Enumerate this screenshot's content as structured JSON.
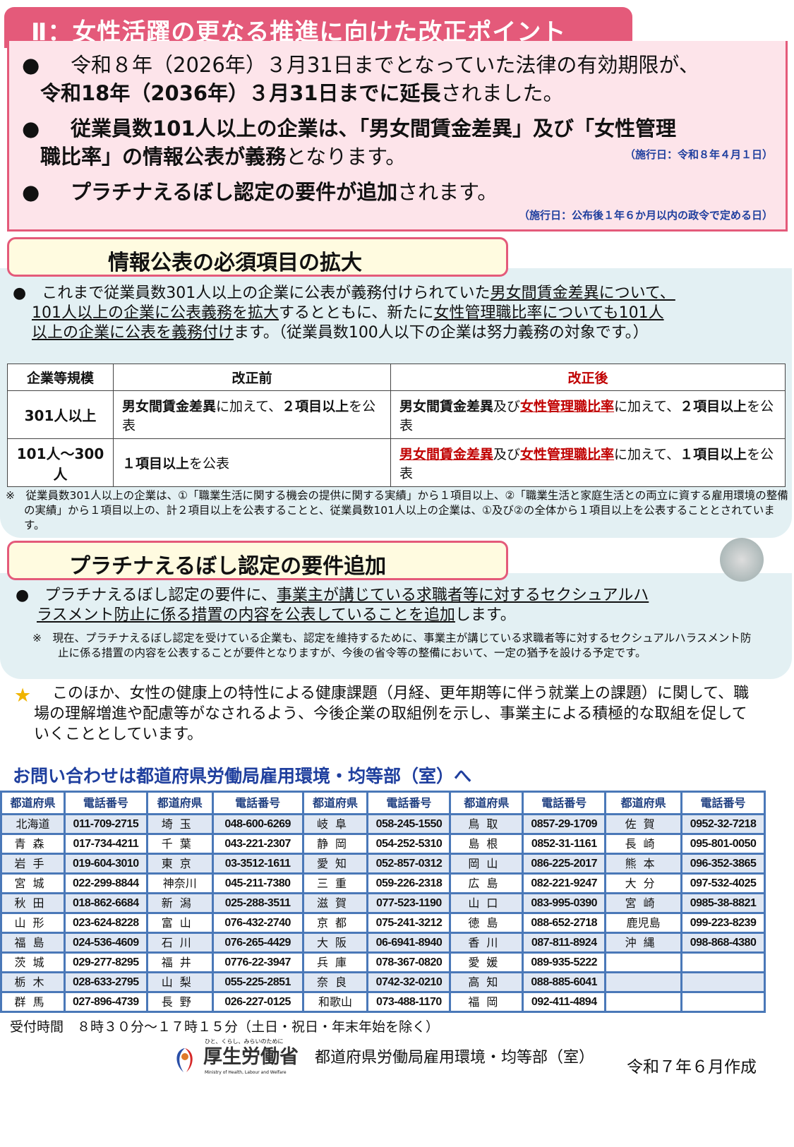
{
  "title": "Ⅱ：女性活躍の更なる推進に向けた改正ポイント",
  "points": {
    "p1a": "令和８年（2026年）３月31日までとなっていた法律の有効期限が、",
    "p1b_bold": "令和18年（2036年）３月31日までに延長",
    "p1b_rest": "されました。",
    "p2a_bold": "従業員数101人以上の企業は、「男女間賃金差異」及び「女性管理",
    "p2b_bold": "職比率」の情報公表が義務",
    "p2b_rest": "となります。",
    "p2_note": "（施行日：令和８年４月１日）",
    "p3_bold": "プラチナえるぼし認定の要件が追加",
    "p3_rest": "されます。",
    "p3_note": "（施行日：公布後１年６か月以内の政令で定める日）"
  },
  "section1": {
    "heading": "情報公表の必須項目の拡大",
    "l1a": "これまで従業員数301人以上の企業に公表が義務付けられていた",
    "l1b_u": "男女間賃金差異について、",
    "l2a_u": "101人以上の企業に公表義務を拡大",
    "l2b": "するとともに、新たに",
    "l2c_u": "女性管理職比率についても101人",
    "l3a_u": "以上の企業に公表を義務付け",
    "l3b": "ます。（従業員数100人以下の企業は努力義務の対象です。）",
    "table": {
      "headers": [
        "企業等規模",
        "改正前",
        "改正後"
      ],
      "r1": {
        "size": "301人以上",
        "before_b": "男女間賃金差異",
        "before_r": "に加えて、",
        "before_b2": "２項目以上",
        "before_r2": "を公表",
        "after_b": "男女間賃金差異",
        "after_r": "及び",
        "after_red": "女性管理職比率",
        "after_r2": "に加えて、",
        "after_b2": "２項目以上",
        "after_r3": "を公表"
      },
      "r2": {
        "size": "101人～300人",
        "before_b": "１項目以上",
        "before_r": "を公表",
        "after_red1": "男女間賃金差異",
        "after_r": "及び",
        "after_red2": "女性管理職比率",
        "after_r2": "に加えて、",
        "after_b2": "１項目以上",
        "after_r3": "を公表"
      }
    },
    "footnote": "※　従業員数301人以上の企業は、①「職業生活に関する機会の提供に関する実績」から１項目以上、②「職業生活と家庭生活との両立に資する雇用環境の整備の実績」から１項目以上の、計２項目以上を公表することと、従業員数101人以上の企業は、①及び②の全体から１項目以上を公表することとされています。"
  },
  "section2": {
    "heading": "プラチナえるぼし認定の要件追加",
    "l1a": "プラチナえるぼし認定の要件に、",
    "l1b_u": "事業主が講じている求職者等に対するセクシュアルハ",
    "l2a_u": "ラスメント防止に係る措置の内容を公表していることを追加",
    "l2b": "します。",
    "note": "※　現在、プラチナえるぼし認定を受けている企業も、認定を維持するために、事業主が講じている求職者等に対するセクシュアルハラスメント防止に係る措置の内容を公表することが要件となりますが、今後の省令等の整備において、一定の猶予を設ける予定です。"
  },
  "star_text": "このほか、女性の健康上の特性による健康課題（月経、更年期等に伴う就業上の課題）に関して、職場の理解増進や配慮等がなされるよう、今後企業の取組例を示し、事業主による積極的な取組を促していくこととしています。",
  "contact": {
    "heading": "お問い合わせは都道府県労働局雇用環境・均等部（室）へ",
    "col_pref": "都道府県",
    "col_tel": "電話番号",
    "rows": [
      [
        [
          "北海道",
          "011-709-2715"
        ],
        [
          "埼玉",
          "048-600-6269"
        ],
        [
          "岐阜",
          "058-245-1550"
        ],
        [
          "鳥取",
          "0857-29-1709"
        ],
        [
          "佐賀",
          "0952-32-7218"
        ]
      ],
      [
        [
          "青森",
          "017-734-4211"
        ],
        [
          "千葉",
          "043-221-2307"
        ],
        [
          "静岡",
          "054-252-5310"
        ],
        [
          "島根",
          "0852-31-1161"
        ],
        [
          "長崎",
          "095-801-0050"
        ]
      ],
      [
        [
          "岩手",
          "019-604-3010"
        ],
        [
          "東京",
          "03-3512-1611"
        ],
        [
          "愛知",
          "052-857-0312"
        ],
        [
          "岡山",
          "086-225-2017"
        ],
        [
          "熊本",
          "096-352-3865"
        ]
      ],
      [
        [
          "宮城",
          "022-299-8844"
        ],
        [
          "神奈川",
          "045-211-7380"
        ],
        [
          "三重",
          "059-226-2318"
        ],
        [
          "広島",
          "082-221-9247"
        ],
        [
          "大分",
          "097-532-4025"
        ]
      ],
      [
        [
          "秋田",
          "018-862-6684"
        ],
        [
          "新潟",
          "025-288-3511"
        ],
        [
          "滋賀",
          "077-523-1190"
        ],
        [
          "山口",
          "083-995-0390"
        ],
        [
          "宮崎",
          "0985-38-8821"
        ]
      ],
      [
        [
          "山形",
          "023-624-8228"
        ],
        [
          "富山",
          "076-432-2740"
        ],
        [
          "京都",
          "075-241-3212"
        ],
        [
          "徳島",
          "088-652-2718"
        ],
        [
          "鹿児島",
          "099-223-8239"
        ]
      ],
      [
        [
          "福島",
          "024-536-4609"
        ],
        [
          "石川",
          "076-265-4429"
        ],
        [
          "大阪",
          "06-6941-8940"
        ],
        [
          "香川",
          "087-811-8924"
        ],
        [
          "沖縄",
          "098-868-4380"
        ]
      ],
      [
        [
          "茨城",
          "029-277-8295"
        ],
        [
          "福井",
          "0776-22-3947"
        ],
        [
          "兵庫",
          "078-367-0820"
        ],
        [
          "愛媛",
          "089-935-5222"
        ],
        [
          "",
          ""
        ]
      ],
      [
        [
          "栃木",
          "028-633-2795"
        ],
        [
          "山梨",
          "055-225-2851"
        ],
        [
          "奈良",
          "0742-32-0210"
        ],
        [
          "高知",
          "088-885-6041"
        ],
        [
          "",
          ""
        ]
      ],
      [
        [
          "群馬",
          "027-896-4739"
        ],
        [
          "長野",
          "026-227-0125"
        ],
        [
          "和歌山",
          "073-488-1170"
        ],
        [
          "福岡",
          "092-411-4894"
        ],
        [
          "",
          ""
        ]
      ]
    ],
    "hours": "受付時間　８時３０分～１７時１５分（土日・祝日・年末年始を除く）"
  },
  "footer": {
    "logo_tagline": "ひと、くらし、みらいのために",
    "logo_name": "厚生労働省",
    "logo_en": "Ministry of Health, Labour and Welfare",
    "dept": "都道府県労働局雇用環境・均等部（室）",
    "date": "令和７年６月作成"
  },
  "colors": {
    "pink": "#e45a7a",
    "blue": "#1f3f9e",
    "red": "#c00000",
    "table_blue": "#4a78b8"
  }
}
